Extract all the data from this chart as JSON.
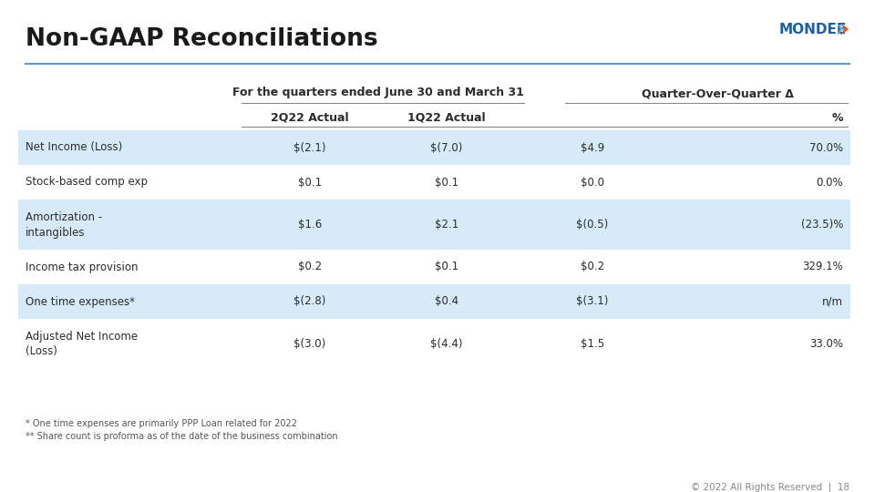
{
  "title": "Non-GAAP Reconciliations",
  "subtitle": "For the quarters ended June 30 and March 31",
  "qoq_header": "Quarter-Over-Quarter Δ",
  "col_headers": [
    "2Q22 Actual",
    "1Q22 Actual",
    "",
    "%"
  ],
  "rows": [
    {
      "label": "Net Income (Loss)",
      "vals": [
        "$(2.1)",
        "$(7.0)",
        "$4.9",
        "70.0%"
      ],
      "shaded": true,
      "multiline": false
    },
    {
      "label": "Stock-based comp exp",
      "vals": [
        "$0.1",
        "$0.1",
        "$0.0",
        "0.0%"
      ],
      "shaded": false,
      "multiline": false
    },
    {
      "label": "Amortization -\nintangibles",
      "vals": [
        "$1.6",
        "$2.1",
        "$(0.5)",
        "(23.5)%"
      ],
      "shaded": true,
      "multiline": true
    },
    {
      "label": "Income tax provision",
      "vals": [
        "$0.2",
        "$0.1",
        "$0.2",
        "329.1%"
      ],
      "shaded": false,
      "multiline": false
    },
    {
      "label": "One time expenses*",
      "vals": [
        "$(2.8)",
        "$0.4",
        "$(3.1)",
        "n/m"
      ],
      "shaded": true,
      "multiline": false
    },
    {
      "label": "Adjusted Net Income\n(Loss)",
      "vals": [
        "$(3.0)",
        "$(4.4)",
        "$1.5",
        "33.0%"
      ],
      "shaded": false,
      "multiline": true
    }
  ],
  "footnotes": [
    "* One time expenses are primarily PPP Loan related for 2022",
    "** Share count is proforma as of the date of the business combination"
  ],
  "footer_text": "© 2022 All Rights Reserved  |  18",
  "bg_color": "#ffffff",
  "shaded_row_color": "#d6eaf8",
  "title_color": "#1a1a1a",
  "header_line_color": "#888888",
  "accent_line_color": "#5b9bd5",
  "mondee_blue": "#1f5fa6",
  "mondee_orange": "#e8501a",
  "mondee_light_blue": "#5bc4f5",
  "text_color": "#2c2c2c",
  "footnote_color": "#555555",
  "footer_color": "#888888",
  "title_fontsize": 19,
  "subtitle_fontsize": 9,
  "header_fontsize": 9,
  "cell_fontsize": 8.5,
  "footnote_fontsize": 7,
  "footer_fontsize": 7.5
}
